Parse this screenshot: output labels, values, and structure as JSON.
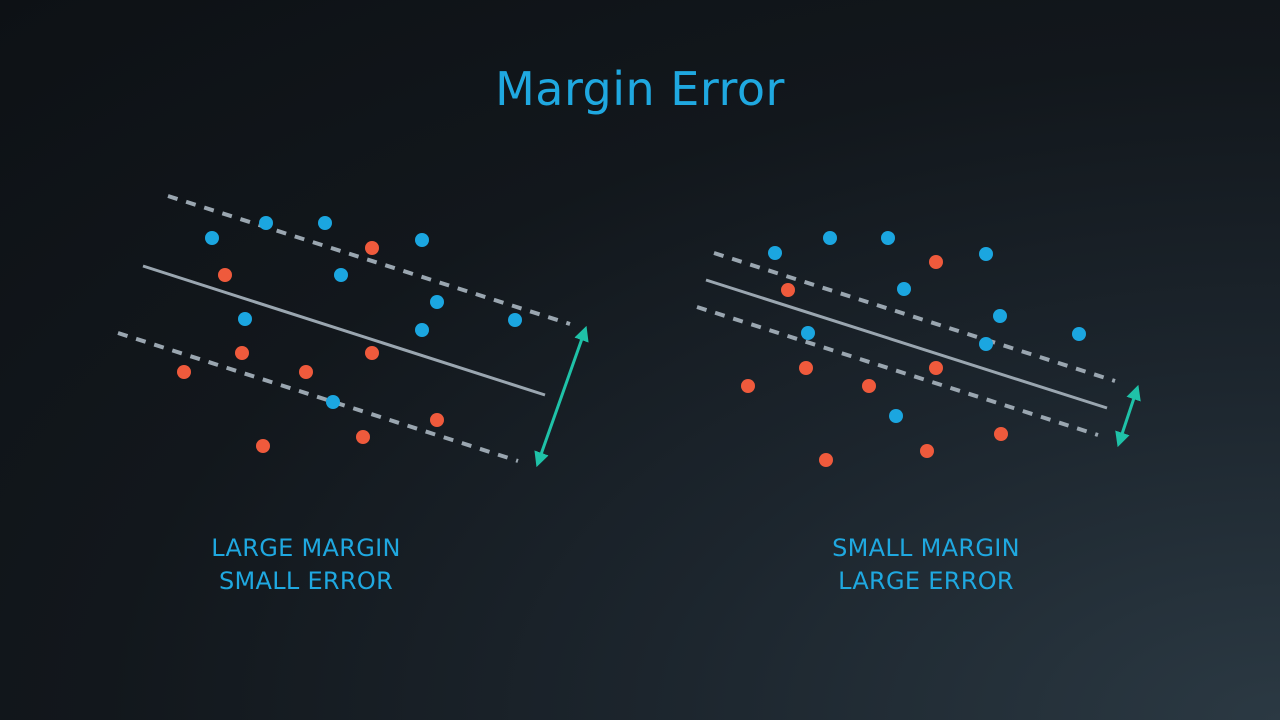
{
  "title": "Margin Error",
  "colors": {
    "blue_point": "#1ba6e0",
    "red_point": "#ef5a3c",
    "line": "#9aa6b0",
    "arrow": "#1fc2a8",
    "text": "#1fa8e0"
  },
  "panels": [
    {
      "id": "left",
      "caption_line1": "LARGE MARGIN",
      "caption_line2": "SMALL ERROR",
      "margin": "large",
      "error": "small"
    },
    {
      "id": "right",
      "caption_line1": "SMALL MARGIN",
      "caption_line2": "LARGE ERROR",
      "margin": "small",
      "error": "large"
    }
  ]
}
